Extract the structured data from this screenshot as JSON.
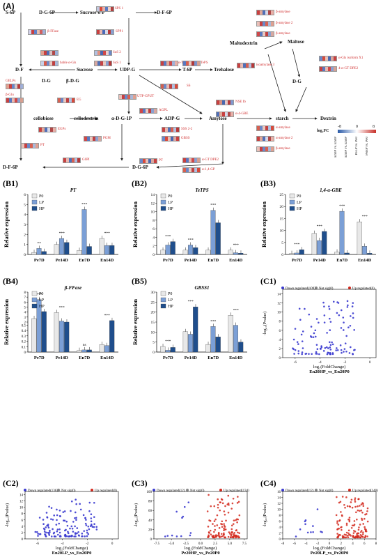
{
  "panel_a": {
    "tag": "(A)",
    "nodes": [
      "S-6P",
      "D-G-6P",
      "Sucrose-6-P",
      "D-F-6P",
      "D-F",
      "Sucrose",
      "UDP-G",
      "T-6P",
      "Trehalose",
      "D-G",
      "β-D-G",
      "cellobiose",
      "cellodextrin",
      "α-D-G-1P",
      "ADP-G",
      "Amylose",
      "starch",
      "Dextrin",
      "Maltodextrin",
      "Maltose",
      "D-G",
      "D-F-6P",
      "D-G-6P"
    ],
    "genes": [
      "SPS 1",
      "SPP1",
      "β-FFase",
      "bable α-Gls",
      "SuS 2",
      "SuS 1",
      "α-TPS",
      "TePS",
      "SS",
      "NSE Ib",
      "α-4-GBE",
      "UTP-GPUT",
      "AGPL",
      "SSS 2-2",
      "GBSS",
      "GELPs",
      "β-Glu",
      "EG",
      "EGPs",
      "PT",
      "PGM",
      "G6PI",
      "PT",
      "α-GT DPE2",
      "α-1,4-GP",
      "β-amylase",
      "β-amylase 2",
      "β-amylase",
      "isoamylase 3",
      "α-Gls isoform X1",
      "4-α-GT DPE2",
      "α-amylase",
      "α-amylase 2",
      "β-amylase"
    ],
    "legend_title": "log₂FC",
    "legend_ticks": [
      "-8",
      "0",
      "8"
    ],
    "legend_cols": [
      "En0P vs. En0P",
      "En0P vs. En0P",
      "PeLP vs. Pe0",
      "PeHP vs. Pe0"
    ]
  },
  "bars": [
    {
      "tag": "(B1)",
      "title": "PT",
      "ylabel": "Relative expression",
      "legend": [
        "P0",
        "LP",
        "HP"
      ],
      "chart_data": {
        "type": "bar",
        "categories": [
          "Pe7D",
          "Pe14D",
          "En7D",
          "En14D"
        ],
        "ylim": [
          0,
          6
        ],
        "yticks": [
          "0",
          "1",
          "2",
          "3",
          "4",
          "5",
          "6"
        ],
        "series": [
          {
            "name": "P0",
            "values": [
              0.2,
              1.0,
              0.4,
              1.6
            ]
          },
          {
            "name": "LP",
            "values": [
              0.6,
              1.6,
              4.5,
              0.9
            ]
          },
          {
            "name": "HP",
            "values": [
              0.3,
              1.2,
              0.8,
              0.9
            ]
          }
        ],
        "sig": [
          "**",
          "***",
          "***",
          "***"
        ]
      }
    },
    {
      "tag": "(B2)",
      "title": "TeTPS",
      "ylabel": "Relative expression",
      "legend": [
        "P0",
        "LP",
        "HP"
      ],
      "chart_data": {
        "type": "bar",
        "categories": [
          "Pe7D",
          "Pe14D",
          "En7D",
          "En14D"
        ],
        "ylim": [
          0,
          14
        ],
        "yticks": [
          "0",
          "2",
          "4",
          "6",
          "8",
          "10",
          "12",
          "14"
        ],
        "series": [
          {
            "name": "P0",
            "values": [
              1.0,
              1.0,
              1.0,
              1.0
            ]
          },
          {
            "name": "LP",
            "values": [
              2.2,
              2.2,
              10.3,
              0.4
            ]
          },
          {
            "name": "HP",
            "values": [
              3.0,
              1.6,
              7.4,
              0.3
            ]
          }
        ],
        "sig": [
          "***",
          "***",
          "***",
          "***"
        ]
      }
    },
    {
      "tag": "(B3)",
      "title": "1,4-α-GBE",
      "ylabel": "Relative expression",
      "legend": [
        "P0",
        "LP",
        "HP"
      ],
      "chart_data": {
        "type": "bar",
        "categories": [
          "Pe7D",
          "Pe14D",
          "En7D",
          "En14D"
        ],
        "ylim": [
          0,
          25
        ],
        "yticks": [
          "0",
          "5",
          "10",
          "15",
          "20",
          "25"
        ],
        "series": [
          {
            "name": "P0",
            "values": [
              0.4,
              8.8,
              1.0,
              13.6
            ]
          },
          {
            "name": "LP",
            "values": [
              0.6,
              5.8,
              18.0,
              3.4
            ]
          },
          {
            "name": "HP",
            "values": [
              2.0,
              9.6,
              0.6,
              0.5
            ]
          }
        ],
        "sig": [
          "***",
          "***",
          "***",
          "***"
        ]
      }
    },
    {
      "tag": "(B4)",
      "title": "β-FFase",
      "ylabel": "Relative expression",
      "legend": [
        "P0",
        "LP",
        "HP"
      ],
      "chart_data": {
        "type": "bar",
        "categories": [
          "Pe7D",
          "Pe14D",
          "En7D",
          "En14D"
        ],
        "yticks": [
          "0",
          "0.1",
          "0.2",
          "0.3",
          "0.4",
          "0.5",
          "2",
          "3",
          "4",
          "5",
          "6",
          "7",
          "8"
        ],
        "series": [
          {
            "name": "P0",
            "values": [
              2.7,
              3.9,
              0.03,
              0.14
            ]
          },
          {
            "name": "LP",
            "values": [
              6.5,
              2.2,
              0.04,
              0.12
            ]
          },
          {
            "name": "HP",
            "values": [
              4.1,
              2.0,
              0.04,
              2.3
            ]
          }
        ],
        "sig": [
          "***",
          "***",
          "ns",
          "***"
        ]
      }
    },
    {
      "tag": "(B5)",
      "title": "GBSS1",
      "ylabel": "Relative expression",
      "legend": [
        "P0",
        "LP",
        "HP"
      ],
      "chart_data": {
        "type": "bar",
        "categories": [
          "Pe7D",
          "Pe14D",
          "En7D",
          "En14D"
        ],
        "ylim": [
          0,
          30
        ],
        "yticks": [
          "0",
          "5",
          "10",
          "15",
          "20",
          "25",
          "30"
        ],
        "series": [
          {
            "name": "P0",
            "values": [
              2.8,
              10.2,
              3.8,
              18.4
            ]
          },
          {
            "name": "LP",
            "values": [
              0.9,
              8.9,
              12.8,
              13.4
            ]
          },
          {
            "name": "HP",
            "values": [
              2.3,
              22.6,
              7.6,
              5.0
            ]
          }
        ],
        "sig": [
          "***",
          "***",
          "***",
          "***"
        ]
      }
    }
  ],
  "volcanos": [
    {
      "tag": "(C1)",
      "legend": [
        "Down regulated(109)",
        "Not sig(0)",
        "Up regulated(0)"
      ],
      "xlabel": "log₂(FoldChange)",
      "ylabel": "-log₁₀(Pvalue)",
      "subtitle": "En20HP_vs_En20P0",
      "xticks": [
        "-6",
        "-4",
        "-2",
        "0"
      ],
      "yticks": [
        "0",
        "2",
        "4",
        "6",
        "8",
        "10",
        "12",
        "14"
      ],
      "chart_data": {
        "type": "scatter",
        "xlim": [
          -7,
          0.5
        ],
        "ylim": [
          0,
          15
        ],
        "down": 109,
        "up": 0
      }
    },
    {
      "tag": "(C2)",
      "legend": [
        "Down regulated(136)",
        "Not sig(0)",
        "Up regulated(0)"
      ],
      "xlabel": "log₂(FoldChange)",
      "ylabel": "-log₁₀(Pvalue)",
      "subtitle": "En20LP_vs_En20P0",
      "xticks": [
        "-6",
        "-4",
        "-2",
        "0"
      ],
      "yticks": [
        "0",
        "2",
        "4",
        "6",
        "8",
        "10",
        "12",
        "14"
      ],
      "chart_data": {
        "type": "scatter",
        "xlim": [
          -7,
          0.5
        ],
        "ylim": [
          0,
          15
        ],
        "down": 136,
        "up": 0
      }
    },
    {
      "tag": "(C3)",
      "legend": [
        "Down regulated(12)",
        "Not sig(0)",
        "Up regulated(134)"
      ],
      "xlabel": "log₂(FoldChange)",
      "ylabel": "-log₁₀(Pvalue)",
      "subtitle": "Pe20HP_vs_Pe20P0",
      "xticks": [
        "-7.5",
        "-5.0",
        "-2.5",
        "0.0",
        "2.5",
        "5.0",
        "7.5"
      ],
      "yticks": [
        "0",
        "20",
        "40",
        "60",
        "80",
        "100"
      ],
      "chart_data": {
        "type": "scatter",
        "xlim": [
          -8,
          8
        ],
        "ylim": [
          0,
          100
        ],
        "down": 12,
        "up": 134
      }
    },
    {
      "tag": "(C4)",
      "legend": [
        "Down regulated(12)",
        "Not sig(0)",
        "Up regulated(140)"
      ],
      "xlabel": "log₂(FoldChange)",
      "ylabel": "-log₁₀(Pvalue)",
      "subtitle": "Pe20LP_vs_Pe20P0",
      "xticks": [
        "-8",
        "-6",
        "-4",
        "-2",
        "0",
        "2",
        "4",
        "6",
        "8"
      ],
      "yticks": [
        "0",
        "2",
        "4",
        "6",
        "8",
        "10",
        "12",
        "14",
        "16"
      ],
      "chart_data": {
        "type": "scatter",
        "xlim": [
          -8,
          8
        ],
        "ylim": [
          0,
          16
        ],
        "down": 12,
        "up": 140
      }
    }
  ],
  "colors": {
    "p0": "#e8e8e8",
    "lp": "#7b9fd6",
    "hp": "#1f4e8c",
    "down": "#3a3acf",
    "up": "#d42a1e",
    "heat_low": "#2a5aa8",
    "heat_high": "#c8302a"
  }
}
